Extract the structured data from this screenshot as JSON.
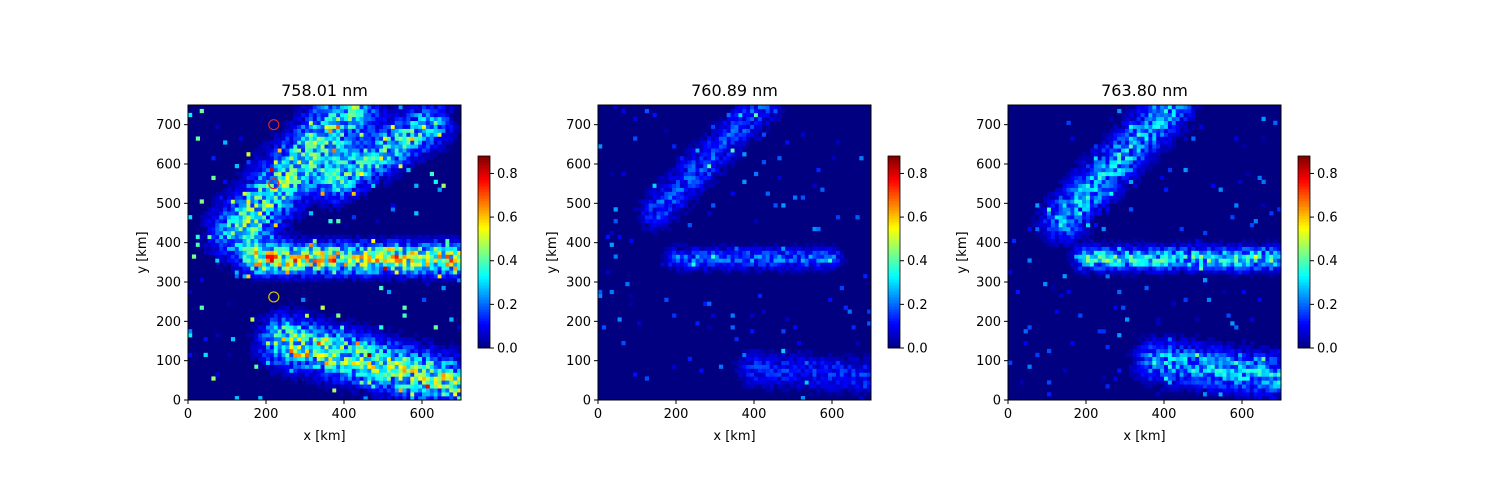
{
  "chart_data": [
    {
      "type": "heatmap",
      "title": "758.01 nm",
      "xlabel": "x [km]",
      "ylabel": "y [km]",
      "xlim": [
        0,
        700
      ],
      "ylim": [
        0,
        750
      ],
      "xticks": [
        "0",
        "200",
        "400",
        "600"
      ],
      "yticks": [
        "0",
        "100",
        "200",
        "300",
        "400",
        "500",
        "600",
        "700"
      ],
      "colorbar": {
        "range": [
          0.0,
          0.88
        ],
        "ticks": [
          "0.0",
          "0.2",
          "0.4",
          "0.6",
          "0.8"
        ],
        "colormap": "jet"
      },
      "markers": [
        {
          "x": 220,
          "y": 700,
          "color": "#d62728"
        },
        {
          "x": 220,
          "y": 550,
          "color": "#d62728"
        },
        {
          "x": 220,
          "y": 262,
          "color": "#d6c300"
        }
      ],
      "features": [
        {
          "kind": "band",
          "x1": 130,
          "y1": 430,
          "x2": 420,
          "y2": 750,
          "width": 45,
          "value": 0.35
        },
        {
          "kind": "band",
          "x1": 180,
          "y1": 360,
          "x2": 700,
          "y2": 360,
          "width": 25,
          "value": 0.5
        },
        {
          "kind": "band",
          "x1": 250,
          "y1": 150,
          "x2": 700,
          "y2": 40,
          "width": 40,
          "value": 0.4
        },
        {
          "kind": "band",
          "x1": 380,
          "y1": 560,
          "x2": 620,
          "y2": 700,
          "width": 35,
          "value": 0.3
        }
      ]
    },
    {
      "type": "heatmap",
      "title": "760.89 nm",
      "xlabel": "x [km]",
      "ylabel": "y [km]",
      "xlim": [
        0,
        700
      ],
      "ylim": [
        0,
        750
      ],
      "xticks": [
        "0",
        "200",
        "400",
        "600"
      ],
      "yticks": [
        "0",
        "100",
        "200",
        "300",
        "400",
        "500",
        "600",
        "700"
      ],
      "colorbar": {
        "range": [
          0.0,
          0.88
        ],
        "ticks": [
          "0.0",
          "0.2",
          "0.4",
          "0.6",
          "0.8"
        ],
        "colormap": "jet"
      },
      "features": [
        {
          "kind": "band",
          "x1": 150,
          "y1": 480,
          "x2": 420,
          "y2": 750,
          "width": 30,
          "value": 0.15
        },
        {
          "kind": "band",
          "x1": 200,
          "y1": 360,
          "x2": 600,
          "y2": 360,
          "width": 18,
          "value": 0.18
        },
        {
          "kind": "band",
          "x1": 400,
          "y1": 80,
          "x2": 700,
          "y2": 60,
          "width": 30,
          "value": 0.12
        }
      ]
    },
    {
      "type": "heatmap",
      "title": "763.80 nm",
      "xlabel": "x [km]",
      "ylabel": "y [km]",
      "xlim": [
        0,
        700
      ],
      "ylim": [
        0,
        750
      ],
      "xticks": [
        "0",
        "200",
        "400",
        "600"
      ],
      "yticks": [
        "0",
        "100",
        "200",
        "300",
        "400",
        "500",
        "600",
        "700"
      ],
      "colorbar": {
        "range": [
          0.0,
          0.88
        ],
        "ticks": [
          "0.0",
          "0.2",
          "0.4",
          "0.6",
          "0.8"
        ],
        "colormap": "jet"
      },
      "features": [
        {
          "kind": "band",
          "x1": 140,
          "y1": 460,
          "x2": 420,
          "y2": 750,
          "width": 35,
          "value": 0.25
        },
        {
          "kind": "band",
          "x1": 200,
          "y1": 360,
          "x2": 680,
          "y2": 360,
          "width": 20,
          "value": 0.3
        },
        {
          "kind": "band",
          "x1": 380,
          "y1": 100,
          "x2": 700,
          "y2": 60,
          "width": 35,
          "value": 0.25
        }
      ]
    }
  ]
}
